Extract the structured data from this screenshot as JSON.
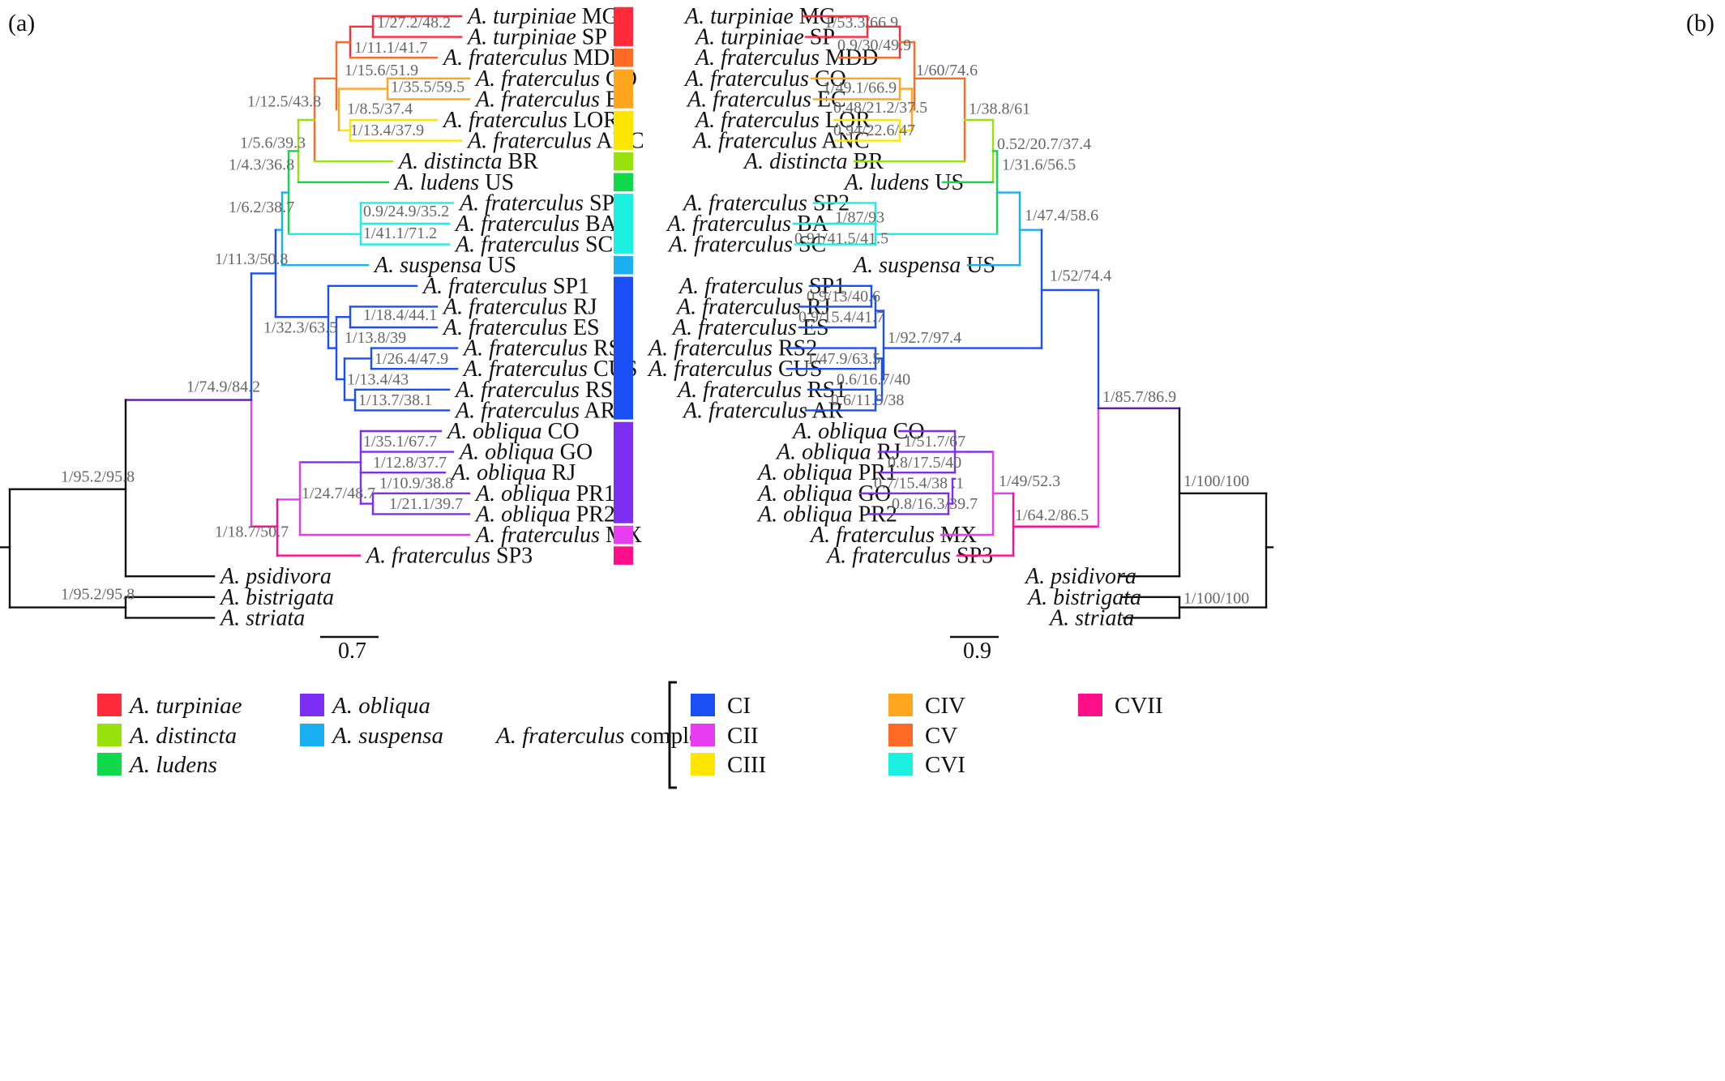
{
  "panels": {
    "a": "(a)",
    "b": "(b)"
  },
  "tree_a": {
    "scale_label": "0.7",
    "tips": [
      {
        "genus": "A. turpiniae",
        "loc": "MG"
      },
      {
        "genus": "A. turpiniae",
        "loc": "SP"
      },
      {
        "genus": "A. fraterculus",
        "loc": "MDD"
      },
      {
        "genus": "A. fraterculus",
        "loc": "CO"
      },
      {
        "genus": "A. fraterculus",
        "loc": "EC"
      },
      {
        "genus": "A. fraterculus",
        "loc": "LOR"
      },
      {
        "genus": "A. fraterculus",
        "loc": "ANC"
      },
      {
        "genus": "A. distincta",
        "loc": "BR"
      },
      {
        "genus": "A. ludens",
        "loc": "US"
      },
      {
        "genus": "A. fraterculus",
        "loc": "SP2"
      },
      {
        "genus": "A. fraterculus",
        "loc": "BA"
      },
      {
        "genus": "A. fraterculus",
        "loc": "SC"
      },
      {
        "genus": "A. suspensa",
        "loc": "US"
      },
      {
        "genus": "A. fraterculus",
        "loc": "SP1"
      },
      {
        "genus": "A. fraterculus",
        "loc": "RJ"
      },
      {
        "genus": "A. fraterculus",
        "loc": "ES"
      },
      {
        "genus": "A. fraterculus",
        "loc": "RS2"
      },
      {
        "genus": "A. fraterculus",
        "loc": "CUS"
      },
      {
        "genus": "A. fraterculus",
        "loc": "RS1"
      },
      {
        "genus": "A. fraterculus",
        "loc": "AR"
      },
      {
        "genus": "A. obliqua",
        "loc": "CO"
      },
      {
        "genus": "A. obliqua",
        "loc": "GO"
      },
      {
        "genus": "A. obliqua",
        "loc": "RJ"
      },
      {
        "genus": "A. obliqua",
        "loc": "PR1"
      },
      {
        "genus": "A. obliqua",
        "loc": "PR2"
      },
      {
        "genus": "A. fraterculus",
        "loc": "MX"
      },
      {
        "genus": "A. fraterculus",
        "loc": "SP3"
      },
      {
        "genus": "A. psidivora",
        "loc": ""
      },
      {
        "genus": "A. bistrigata",
        "loc": ""
      },
      {
        "genus": "A. striata",
        "loc": ""
      }
    ],
    "supports": [
      "1/27.2/48.2",
      "1/11.1/41.7",
      "1/15.6/51.9",
      "1/35.5/59.5",
      "1/8.5/37.4",
      "1/13.4/37.9",
      "1/12.5/43.8",
      "1/5.6/39.3",
      "1/4.3/36.8",
      "0.9/24.9/35.2",
      "1/41.1/71.2",
      "1/6.2/38.7",
      "1/11.3/50.8",
      "1/18.4/44.1",
      "1/32.3/63.5",
      "1/13.8/39",
      "1/26.4/47.9",
      "1/13.4/43",
      "1/13.7/38.1",
      "1/74.9/84.2",
      "1/35.1/67.7",
      "1/12.8/37.7",
      "1/10.9/38.8",
      "1/21.1/39.7",
      "1/24.7/48.7",
      "1/18.7/50.7",
      "1/95.2/95.8",
      "1/95.2/95.8"
    ]
  },
  "tree_b": {
    "scale_label": "0.9",
    "tips": [
      {
        "genus": "A. turpiniae",
        "loc": "MG"
      },
      {
        "genus": "A. turpiniae",
        "loc": "SP"
      },
      {
        "genus": "A. fraterculus",
        "loc": "MDD"
      },
      {
        "genus": "A. fraterculus",
        "loc": "CO"
      },
      {
        "genus": "A. fraterculus",
        "loc": "EC"
      },
      {
        "genus": "A. fraterculus",
        "loc": "LOR"
      },
      {
        "genus": "A. fraterculus",
        "loc": "ANC"
      },
      {
        "genus": "A. distincta",
        "loc": "BR"
      },
      {
        "genus": "A. ludens",
        "loc": "US"
      },
      {
        "genus": "A. fraterculus",
        "loc": "SP2"
      },
      {
        "genus": "A. fraterculus",
        "loc": "BA"
      },
      {
        "genus": "A. fraterculus",
        "loc": "SC"
      },
      {
        "genus": "A. suspensa",
        "loc": "US"
      },
      {
        "genus": "A. fraterculus",
        "loc": "SP1"
      },
      {
        "genus": "A. fraterculus",
        "loc": "RJ"
      },
      {
        "genus": "A. fraterculus",
        "loc": "ES"
      },
      {
        "genus": "A. fraterculus",
        "loc": "RS2"
      },
      {
        "genus": "A. fraterculus",
        "loc": "CUS"
      },
      {
        "genus": "A. fraterculus",
        "loc": "RS1"
      },
      {
        "genus": "A. fraterculus",
        "loc": "AR"
      },
      {
        "genus": "A. obliqua",
        "loc": "CO"
      },
      {
        "genus": "A. obliqua",
        "loc": "RJ"
      },
      {
        "genus": "A. obliqua",
        "loc": "PR1"
      },
      {
        "genus": "A. obliqua",
        "loc": "GO"
      },
      {
        "genus": "A. obliqua",
        "loc": "PR2"
      },
      {
        "genus": "A. fraterculus",
        "loc": "MX"
      },
      {
        "genus": "A. fraterculus",
        "loc": "SP3"
      },
      {
        "genus": "A. psidivora",
        "loc": ""
      },
      {
        "genus": "A. bistrigata",
        "loc": ""
      },
      {
        "genus": "A. striata",
        "loc": ""
      }
    ],
    "supports": [
      "1/53.3/66.9",
      "0.9/30/49.9",
      "1/60/74.6",
      "1/49.1/66.9",
      "0.48/21.2/37.5",
      "0.94/22.6/47",
      "1/38.8/61",
      "0.52/20.7/37.4",
      "1/31.6/56.5",
      "1/87/93",
      "0.91/41.5/41.5",
      "1/47.4/58.6",
      "1/52/74.4",
      "0.9/13/40.6",
      "0.9/15.4/41.7",
      "1/92.7/97.4",
      "1/47.9/63.5",
      "0.6/16.7/40",
      "0.6/11.9/38",
      "1/85.7/86.9",
      "1/51.7/67",
      "0.8/17.5/40",
      "0.7/15.4/38 .1",
      "0.8/16.3/39.7",
      "1/49/52.3",
      "1/64.2/86.5",
      "1/100/100",
      "1/100/100"
    ]
  },
  "colors": {
    "turpiniae": "#ff2a3a",
    "distincta": "#99e10c",
    "ludens": "#10d94c",
    "obliqua": "#7c2ef2",
    "suspensa": "#18b0f0",
    "CI": "#1a4ff5",
    "CII": "#e83cf0",
    "CIII": "#ffe600",
    "CIV": "#ffa51e",
    "CV": "#ff6a24",
    "CVI": "#1cf0e0",
    "CVII": "#ff0e8a",
    "outgroup": "#111111",
    "deep": "#5a1fa0"
  },
  "legend": {
    "species": [
      {
        "label": "A. turpiniae",
        "color_key": "turpiniae"
      },
      {
        "label": "A. distincta",
        "color_key": "distincta"
      },
      {
        "label": "A. ludens",
        "color_key": "ludens"
      },
      {
        "label": "A. obliqua",
        "color_key": "obliqua"
      },
      {
        "label": "A. suspensa",
        "color_key": "suspensa"
      }
    ],
    "complex_label_italic": "A. fraterculus",
    "complex_label_rest": " complex",
    "clades": [
      {
        "label": "CI",
        "color_key": "CI"
      },
      {
        "label": "CII",
        "color_key": "CII"
      },
      {
        "label": "CIII",
        "color_key": "CIII"
      },
      {
        "label": "CIV",
        "color_key": "CIV"
      },
      {
        "label": "CV",
        "color_key": "CV"
      },
      {
        "label": "CVI",
        "color_key": "CVI"
      },
      {
        "label": "CVII",
        "color_key": "CVII"
      }
    ]
  }
}
